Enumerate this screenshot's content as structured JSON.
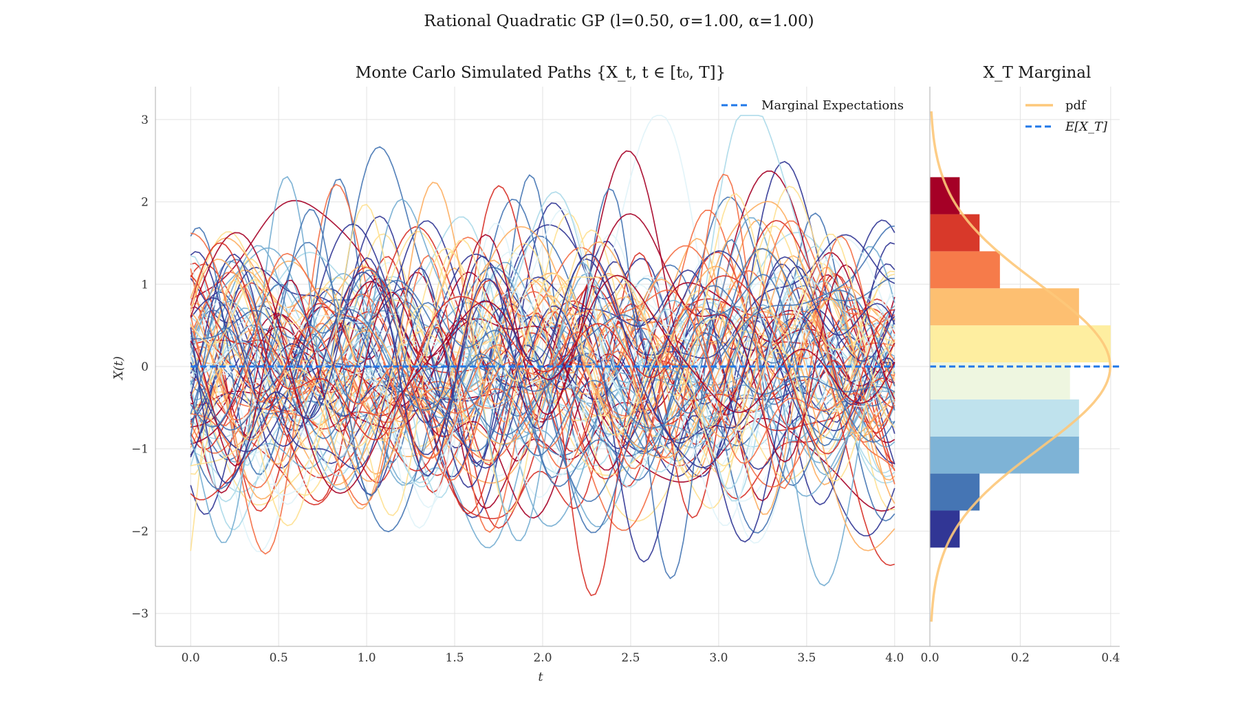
{
  "figure": {
    "suptitle": "Rational Quadratic GP (l=0.50, σ=1.00, α=1.00)"
  },
  "chart_data": [
    {
      "type": "line",
      "title": "Monte Carlo Simulated Paths {X_t, t ∈ [t₀, T]}",
      "xlabel": "t",
      "ylabel": "X(t)",
      "xlim": [
        -0.2,
        4.2
      ],
      "ylim": [
        -3.4,
        3.4
      ],
      "xticks": [
        "0.0",
        "0.5",
        "1.0",
        "1.5",
        "2.0",
        "2.5",
        "3.0",
        "3.5",
        "4.0"
      ],
      "yticks": [
        "−3",
        "−2",
        "−1",
        "0",
        "1",
        "2",
        "3"
      ],
      "grid": true,
      "legend_position": "top-right",
      "legend": [
        {
          "name": "Marginal Expectations",
          "style": "dashed",
          "color": "#1f77e8"
        }
      ],
      "expectation": {
        "x": [
          0,
          4
        ],
        "y": [
          0,
          0
        ]
      },
      "n_paths": 100,
      "colormap": "RdYlBu_r",
      "path_colors": [
        "#a50026",
        "#d73027",
        "#f46d43",
        "#fdae61",
        "#fee090",
        "#e0f3f8",
        "#abd9e9",
        "#74add1",
        "#4575b4",
        "#313695"
      ],
      "gp_kernel": {
        "name": "rational quadratic",
        "l": 0.5,
        "sigma": 1.0,
        "alpha": 1.0
      }
    },
    {
      "type": "bar",
      "orientation": "horizontal",
      "title": "X_T Marginal",
      "xlim": [
        0,
        0.42
      ],
      "xticks": [
        "0.0",
        "0.2",
        "0.4"
      ],
      "grid": true,
      "legend_position": "top-right",
      "legend": [
        {
          "name": "pdf",
          "style": "solid",
          "color": "#fdc87a"
        },
        {
          "name": "E[X_T]",
          "style": "dashed",
          "color": "#1f77e8"
        }
      ],
      "bins": [
        {
          "from": -2.2,
          "to": -1.75,
          "density": 0.066,
          "color": "#313695"
        },
        {
          "from": -1.75,
          "to": -1.3,
          "density": 0.11,
          "color": "#4575b4"
        },
        {
          "from": -1.3,
          "to": -0.85,
          "density": 0.33,
          "color": "#7eb3d6"
        },
        {
          "from": -0.85,
          "to": -0.4,
          "density": 0.33,
          "color": "#bfe2ed"
        },
        {
          "from": -0.4,
          "to": 0.05,
          "density": 0.31,
          "color": "#eef6e0"
        },
        {
          "from": 0.05,
          "to": 0.5,
          "density": 0.4,
          "color": "#feeea0"
        },
        {
          "from": 0.5,
          "to": 0.95,
          "density": 0.33,
          "color": "#fdbf71"
        },
        {
          "from": 0.95,
          "to": 1.4,
          "density": 0.155,
          "color": "#f67b4a"
        },
        {
          "from": 1.4,
          "to": 1.85,
          "density": 0.11,
          "color": "#d8392a"
        },
        {
          "from": 1.85,
          "to": 2.3,
          "density": 0.066,
          "color": "#a50026"
        }
      ],
      "pdf": {
        "mean": 0.0,
        "std": 1.0,
        "y_range": [
          -3.1,
          3.1
        ]
      },
      "expected_value": 0.0
    }
  ]
}
